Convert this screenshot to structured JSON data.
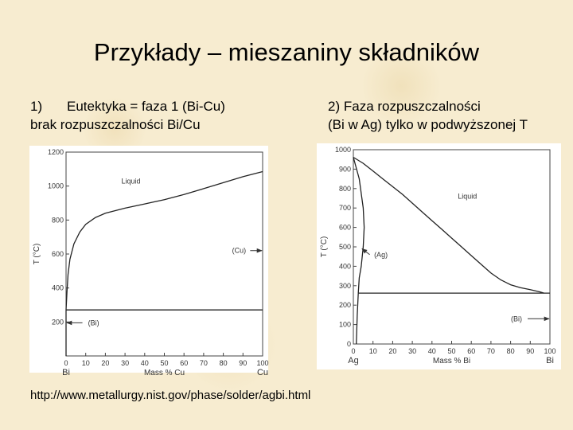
{
  "slide": {
    "title": "Przykłady – mieszaniny składników",
    "caption1": {
      "num": "1)",
      "line1": "Eutektyka = faza 1 (Bi-Cu)",
      "line2": "brak rozpuszczalności Bi/Cu"
    },
    "caption2": {
      "num": "2)",
      "line1": "Faza rozpuszczalności",
      "line2": "(Bi w Ag) tylko w podwyższonej T"
    },
    "source_url": "http://www.metallurgy.nist.gov/phase/solder/agbi.html"
  },
  "chart_data": [
    {
      "type": "line",
      "xlabel": "Mass % Cu",
      "ylabel": "T (°C)",
      "xlim": [
        0,
        100
      ],
      "ylim": [
        0,
        1200
      ],
      "x_ticks": [
        0,
        10,
        20,
        30,
        40,
        50,
        60,
        70,
        80,
        90,
        100
      ],
      "y_ticks": [
        200,
        400,
        600,
        800,
        1000,
        1200
      ],
      "left_component": "Bi",
      "right_component": "Cu",
      "grid": false,
      "series": [
        {
          "points": [
            [
              0,
              271
            ],
            [
              0.5,
              380
            ],
            [
              1,
              480
            ],
            [
              2,
              570
            ],
            [
              4,
              660
            ],
            [
              7,
              730
            ],
            [
              10,
              775
            ],
            [
              15,
              815
            ],
            [
              20,
              840
            ],
            [
              30,
              870
            ],
            [
              40,
              895
            ],
            [
              50,
              920
            ],
            [
              60,
              950
            ],
            [
              70,
              985
            ],
            [
              80,
              1020
            ],
            [
              90,
              1055
            ],
            [
              100,
              1085
            ]
          ]
        },
        {
          "points": [
            [
              0,
              271
            ],
            [
              100,
              271
            ]
          ]
        },
        {
          "points": [
            [
              0,
              271
            ],
            [
              0,
              0
            ]
          ]
        }
      ],
      "annotations": [
        {
          "text": "Liquid",
          "x": 33,
          "y": 1030
        },
        {
          "text": "(Cu)",
          "x": 88,
          "y": 620,
          "arrow_to": [
            100,
            620
          ]
        },
        {
          "text": "(Bi)",
          "x": 14,
          "y": 195,
          "arrow_to": [
            0,
            195
          ]
        }
      ]
    },
    {
      "type": "line",
      "xlabel": "Mass % Bi",
      "ylabel": "T (°C)",
      "xlim": [
        0,
        100
      ],
      "ylim": [
        0,
        1000
      ],
      "x_ticks": [
        0,
        10,
        20,
        30,
        40,
        50,
        60,
        70,
        80,
        90,
        100
      ],
      "y_ticks": [
        0,
        100,
        200,
        300,
        400,
        500,
        600,
        700,
        800,
        900,
        1000
      ],
      "left_component": "Ag",
      "right_component": "Bi",
      "grid": false,
      "series": [
        {
          "points": [
            [
              0,
              961
            ],
            [
              5,
              930
            ],
            [
              10,
              890
            ],
            [
              15,
              850
            ],
            [
              20,
              810
            ],
            [
              25,
              770
            ],
            [
              30,
              725
            ],
            [
              35,
              680
            ],
            [
              40,
              635
            ],
            [
              45,
              590
            ],
            [
              50,
              545
            ],
            [
              55,
              500
            ],
            [
              60,
              455
            ],
            [
              65,
              410
            ],
            [
              70,
              365
            ],
            [
              75,
              330
            ],
            [
              80,
              305
            ],
            [
              85,
              290
            ],
            [
              90,
              280
            ],
            [
              95,
              268
            ],
            [
              97,
              262
            ]
          ]
        },
        {
          "points": [
            [
              0,
              961
            ],
            [
              3,
              850
            ],
            [
              5,
              700
            ],
            [
              5.5,
              600
            ],
            [
              5,
              500
            ],
            [
              4,
              400
            ],
            [
              3,
              340
            ],
            [
              2.5,
              262
            ]
          ]
        },
        {
          "points": [
            [
              2.5,
              262
            ],
            [
              100,
              262
            ]
          ]
        },
        {
          "points": [
            [
              2.5,
              262
            ],
            [
              2,
              150
            ],
            [
              1.5,
              0
            ]
          ]
        }
      ],
      "annotations": [
        {
          "text": "Liquid",
          "x": 58,
          "y": 760
        },
        {
          "text": "(Ag)",
          "x": 14,
          "y": 460,
          "arrow_to": [
            4,
            490
          ]
        },
        {
          "text": "(Bi)",
          "x": 83,
          "y": 130,
          "arrow_to": [
            100,
            130
          ]
        }
      ]
    }
  ]
}
